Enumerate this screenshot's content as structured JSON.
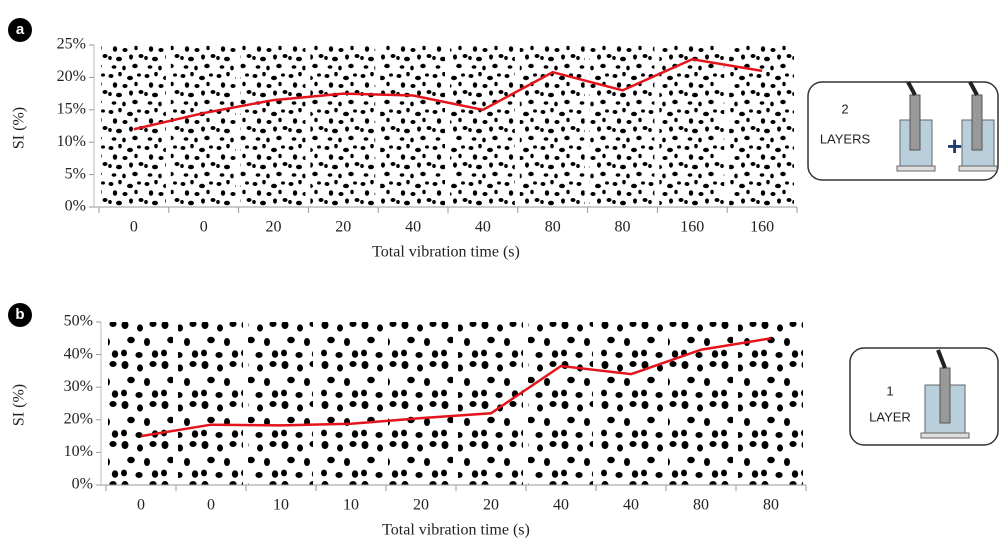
{
  "chart_data": [
    {
      "type": "line",
      "panel_label": "a",
      "x_label": "Total vibration time (s)",
      "y_label": "SI (%)",
      "categories": [
        "0",
        "0",
        "20",
        "20",
        "40",
        "40",
        "80",
        "80",
        "160",
        "160"
      ],
      "values": [
        12,
        14.5,
        16.5,
        17.5,
        17.2,
        15,
        20.8,
        18,
        22.8,
        21
      ],
      "color": "#e3141c",
      "ylim": [
        0,
        25
      ],
      "yticks": [
        {
          "value": 0,
          "label": "0%"
        },
        {
          "value": 5,
          "label": "5%"
        },
        {
          "value": 10,
          "label": "10%"
        },
        {
          "value": 15,
          "label": "15%"
        },
        {
          "value": 20,
          "label": "20%"
        },
        {
          "value": 25,
          "label": "25%"
        }
      ],
      "inset_text": [
        "2",
        "LAYERS"
      ]
    },
    {
      "type": "line",
      "panel_label": "b",
      "x_label": "Total vibration time (s)",
      "y_label": "SI (%)",
      "categories": [
        "0",
        "0",
        "10",
        "10",
        "20",
        "20",
        "40",
        "40",
        "80",
        "80"
      ],
      "values": [
        15,
        18.5,
        18.3,
        18.8,
        20.5,
        22,
        36.5,
        34,
        41.5,
        45
      ],
      "color": "#e3141c",
      "ylim": [
        0,
        50
      ],
      "yticks": [
        {
          "value": 0,
          "label": "0%"
        },
        {
          "value": 10,
          "label": "10%"
        },
        {
          "value": 20,
          "label": "20%"
        },
        {
          "value": 30,
          "label": "30%"
        },
        {
          "value": 40,
          "label": "40%"
        },
        {
          "value": 50,
          "label": "50%"
        }
      ],
      "inset_text": [
        "1",
        "LAYER"
      ]
    }
  ]
}
